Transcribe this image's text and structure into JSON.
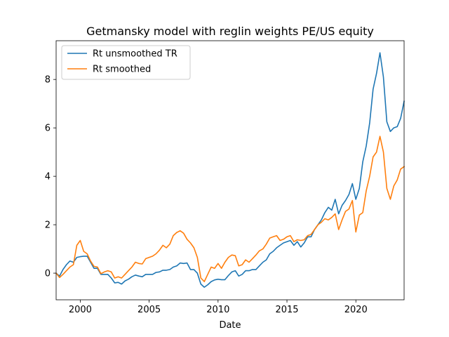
{
  "chart_data": {
    "type": "line",
    "title": "Getmansky model with reglin weights PE/US equity",
    "xlabel": "Date",
    "ylabel": "",
    "xlim": [
      1998.25,
      2023.5
    ],
    "ylim": [
      -1.1,
      9.6
    ],
    "x_ticks": [
      2000,
      2005,
      2010,
      2015,
      2020
    ],
    "y_ticks": [
      0,
      2,
      4,
      6,
      8
    ],
    "grid": false,
    "legend": "upper-left",
    "x": [
      1998.25,
      1998.5,
      1998.75,
      1999.0,
      1999.25,
      1999.5,
      1999.75,
      2000.0,
      2000.25,
      2000.5,
      2000.75,
      2001.0,
      2001.25,
      2001.5,
      2001.75,
      2002.0,
      2002.25,
      2002.5,
      2002.75,
      2003.0,
      2003.25,
      2003.5,
      2003.75,
      2004.0,
      2004.25,
      2004.5,
      2004.75,
      2005.0,
      2005.25,
      2005.5,
      2005.75,
      2006.0,
      2006.25,
      2006.5,
      2006.75,
      2007.0,
      2007.25,
      2007.5,
      2007.75,
      2008.0,
      2008.25,
      2008.5,
      2008.75,
      2009.0,
      2009.25,
      2009.5,
      2009.75,
      2010.0,
      2010.25,
      2010.5,
      2010.75,
      2011.0,
      2011.25,
      2011.5,
      2011.75,
      2012.0,
      2012.25,
      2012.5,
      2012.75,
      2013.0,
      2013.25,
      2013.5,
      2013.75,
      2014.0,
      2014.25,
      2014.5,
      2014.75,
      2015.0,
      2015.25,
      2015.5,
      2015.75,
      2016.0,
      2016.25,
      2016.5,
      2016.75,
      2017.0,
      2017.25,
      2017.5,
      2017.75,
      2018.0,
      2018.25,
      2018.5,
      2018.75,
      2019.0,
      2019.25,
      2019.5,
      2019.75,
      2020.0,
      2020.25,
      2020.5,
      2020.75,
      2021.0,
      2021.25,
      2021.5,
      2021.75,
      2022.0,
      2022.25,
      2022.5,
      2022.75,
      2023.0,
      2023.25,
      2023.5
    ],
    "series": [
      {
        "name": "Rt unsmoothed TR",
        "color": "#1f77b4",
        "values": [
          0.0,
          -0.12,
          0.15,
          0.35,
          0.5,
          0.45,
          0.65,
          0.68,
          0.7,
          0.7,
          0.45,
          0.2,
          0.2,
          -0.05,
          -0.05,
          -0.05,
          -0.2,
          -0.4,
          -0.38,
          -0.45,
          -0.32,
          -0.25,
          -0.15,
          -0.08,
          -0.12,
          -0.15,
          -0.05,
          -0.05,
          -0.05,
          0.03,
          0.05,
          0.12,
          0.12,
          0.15,
          0.25,
          0.3,
          0.42,
          0.4,
          0.42,
          0.15,
          0.15,
          0.0,
          -0.45,
          -0.58,
          -0.48,
          -0.35,
          -0.28,
          -0.25,
          -0.27,
          -0.27,
          -0.1,
          0.05,
          0.1,
          -0.12,
          -0.05,
          0.1,
          0.1,
          0.15,
          0.15,
          0.3,
          0.45,
          0.55,
          0.8,
          0.9,
          1.05,
          1.15,
          1.25,
          1.3,
          1.35,
          1.15,
          1.3,
          1.08,
          1.25,
          1.5,
          1.5,
          1.8,
          2.0,
          2.2,
          2.5,
          2.72,
          2.6,
          3.05,
          2.45,
          2.8,
          3.0,
          3.25,
          3.7,
          3.05,
          3.5,
          4.6,
          5.25,
          6.2,
          7.6,
          8.25,
          9.1,
          8.1,
          6.25,
          5.85,
          6.0,
          6.05,
          6.4,
          7.1
        ]
      },
      {
        "name": "Rt smoothed",
        "color": "#ff7f0e",
        "values": [
          0.0,
          -0.18,
          -0.05,
          0.1,
          0.25,
          0.35,
          1.15,
          1.35,
          0.9,
          0.8,
          0.5,
          0.28,
          0.25,
          -0.02,
          0.05,
          0.1,
          0.05,
          -0.2,
          -0.15,
          -0.2,
          -0.05,
          0.1,
          0.25,
          0.45,
          0.4,
          0.38,
          0.6,
          0.65,
          0.7,
          0.8,
          0.95,
          1.15,
          1.05,
          1.2,
          1.55,
          1.68,
          1.75,
          1.65,
          1.4,
          1.25,
          1.05,
          0.65,
          -0.2,
          -0.35,
          -0.05,
          0.25,
          0.2,
          0.4,
          0.2,
          0.45,
          0.65,
          0.75,
          0.72,
          0.3,
          0.35,
          0.55,
          0.45,
          0.6,
          0.75,
          0.92,
          1.0,
          1.2,
          1.45,
          1.5,
          1.55,
          1.35,
          1.4,
          1.5,
          1.55,
          1.3,
          1.38,
          1.35,
          1.38,
          1.55,
          1.6,
          1.8,
          2.0,
          2.1,
          2.25,
          2.2,
          2.3,
          2.45,
          1.8,
          2.2,
          2.55,
          2.65,
          3.0,
          1.7,
          2.4,
          2.5,
          3.4,
          4.0,
          4.8,
          5.0,
          5.65,
          5.0,
          3.5,
          3.05,
          3.6,
          3.85,
          4.3,
          4.4
        ]
      }
    ]
  }
}
